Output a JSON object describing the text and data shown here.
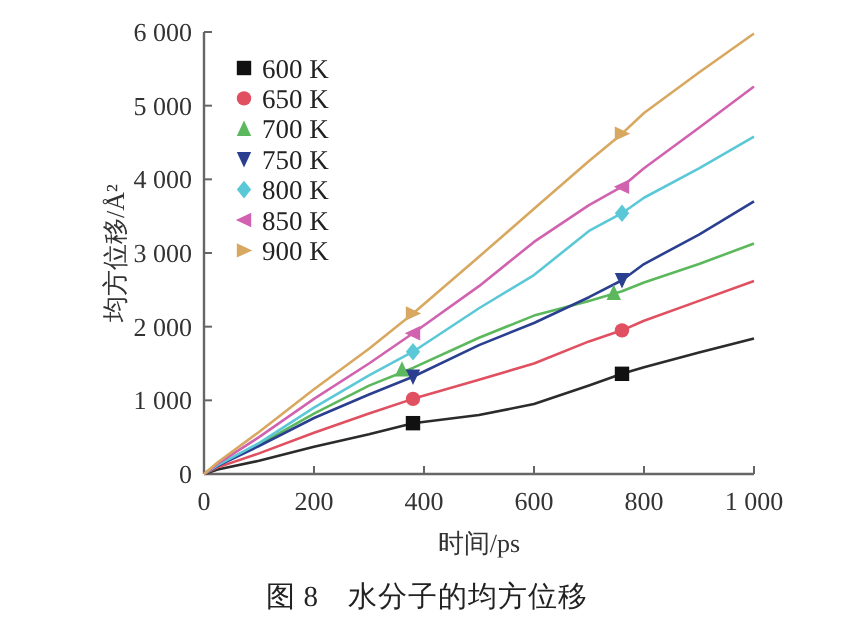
{
  "chart_data": {
    "type": "line",
    "xlabel": "时间/ps",
    "ylabel": "均方位移/Å²",
    "annotations": [
      "图 8　水分子的均方位移"
    ],
    "xlim": [
      0,
      1000
    ],
    "xticks": [
      0,
      200,
      400,
      600,
      800,
      {
        "value": 1000,
        "label": "1 000"
      }
    ],
    "ylim": [
      0,
      6000
    ],
    "yticks": [
      0,
      {
        "value": 1000,
        "label": "1 000"
      },
      {
        "value": 2000,
        "label": "2 000"
      },
      {
        "value": 3000,
        "label": "3 000"
      },
      {
        "value": 4000,
        "label": "4 000"
      },
      {
        "value": 5000,
        "label": "5 000"
      },
      {
        "value": 6000,
        "label": "6 000"
      }
    ],
    "grid": false,
    "legend": "top left",
    "series": [
      {
        "color": "#2b2b2b",
        "x": [
          0,
          25,
          100,
          200,
          300,
          380,
          500,
          600,
          700,
          760,
          800,
          900,
          1000
        ],
        "values": [
          0,
          60,
          180,
          370,
          540,
          690,
          800,
          950,
          1200,
          1360,
          1450,
          1650,
          1840
        ]
      },
      {
        "color": "#e05060",
        "x": [
          0,
          25,
          100,
          200,
          300,
          380,
          500,
          600,
          700,
          760,
          800,
          900,
          1000
        ],
        "values": [
          0,
          90,
          280,
          560,
          820,
          1020,
          1280,
          1500,
          1800,
          1950,
          2080,
          2350,
          2620
        ]
      },
      {
        "color": "#5cb85c",
        "x": [
          0,
          25,
          100,
          200,
          300,
          380,
          500,
          600,
          700,
          760,
          800,
          900,
          1000
        ],
        "values": [
          0,
          120,
          400,
          820,
          1200,
          1440,
          1850,
          2150,
          2350,
          2480,
          2600,
          2850,
          3130
        ]
      },
      {
        "color": "#2a3f8f",
        "x": [
          0,
          25,
          100,
          200,
          300,
          380,
          500,
          600,
          700,
          760,
          800,
          900,
          1000
        ],
        "values": [
          0,
          110,
          380,
          760,
          1080,
          1320,
          1750,
          2050,
          2400,
          2630,
          2850,
          3250,
          3700
        ]
      },
      {
        "color": "#5bc8d8",
        "x": [
          0,
          25,
          100,
          200,
          300,
          380,
          500,
          600,
          700,
          760,
          800,
          900,
          1000
        ],
        "values": [
          0,
          120,
          420,
          900,
          1340,
          1660,
          2250,
          2700,
          3300,
          3540,
          3750,
          4150,
          4580
        ]
      },
      {
        "color": "#d062b0",
        "x": [
          0,
          25,
          100,
          200,
          300,
          380,
          500,
          600,
          700,
          760,
          800,
          900,
          1000
        ],
        "values": [
          0,
          140,
          500,
          1020,
          1500,
          1910,
          2550,
          3150,
          3650,
          3900,
          4150,
          4700,
          5260
        ]
      },
      {
        "color": "#d8a860",
        "x": [
          0,
          25,
          100,
          200,
          300,
          380,
          500,
          600,
          700,
          760,
          800,
          900,
          1000
        ],
        "values": [
          0,
          160,
          570,
          1150,
          1700,
          2180,
          2950,
          3600,
          4250,
          4620,
          4900,
          5450,
          5980
        ]
      },
      {
        "type": "scatter",
        "name": "600 K",
        "color": "#111111",
        "marker": "square",
        "x": [
          380,
          760
        ],
        "values": [
          690,
          1360
        ]
      },
      {
        "type": "scatter",
        "name": "650 K",
        "color": "#e05060",
        "marker": "circle",
        "x": [
          380,
          760
        ],
        "values": [
          1020,
          1950
        ]
      },
      {
        "type": "scatter",
        "name": "700 K",
        "color": "#5cb85c",
        "marker": "triangle",
        "x": [
          360,
          745
        ],
        "values": [
          1420,
          2460
        ]
      },
      {
        "type": "scatter",
        "name": "750 K",
        "color": "#2a3f8f",
        "marker": "triangle-down",
        "x": [
          380,
          760
        ],
        "values": [
          1320,
          2630
        ]
      },
      {
        "type": "scatter",
        "name": "800 K",
        "color": "#5bc8d8",
        "marker": "diamond",
        "x": [
          380,
          760
        ],
        "values": [
          1660,
          3540
        ]
      },
      {
        "type": "scatter",
        "name": "850 K",
        "color": "#d062b0",
        "marker": "triangle-left",
        "x": [
          380,
          760
        ],
        "values": [
          1910,
          3900
        ]
      },
      {
        "type": "scatter",
        "name": "900 K",
        "color": "#d8a860",
        "marker": "triangle-right",
        "x": [
          380,
          760
        ],
        "values": [
          2180,
          4620
        ]
      }
    ]
  }
}
